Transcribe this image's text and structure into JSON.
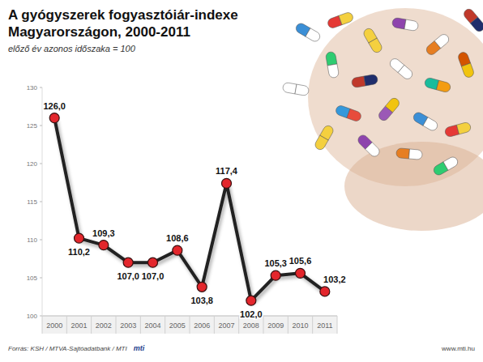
{
  "chart_data": {
    "type": "line",
    "title": "A gyógyszerek fogyasztóiár-indexe Magyarországon, 2000-2011",
    "subtitle": "előző év azonos időszaka = 100",
    "categories": [
      "2000",
      "2001",
      "2002",
      "2003",
      "2004",
      "2005",
      "2006",
      "2007",
      "2008",
      "2009",
      "2010",
      "2011"
    ],
    "values": [
      126.0,
      110.2,
      109.3,
      107.0,
      107.0,
      108.6,
      103.8,
      117.4,
      102.0,
      105.3,
      105.6,
      103.2
    ],
    "value_labels": [
      "126,0",
      "110,2",
      "109,3",
      "107,0",
      "107,0",
      "108,6",
      "103,8",
      "117,4",
      "102,0",
      "105,3",
      "105,6",
      "103,2"
    ],
    "color": "#222222",
    "marker": "circle",
    "ylim": [
      100,
      130
    ],
    "yticks": [
      100,
      105,
      110,
      115,
      120,
      125,
      130
    ],
    "grid": false,
    "data_labels": true,
    "source": "Forrás: KSH / MTVA-Sajtóadatbank / MTI",
    "logo": "mti",
    "url": "www.mti.hu"
  }
}
